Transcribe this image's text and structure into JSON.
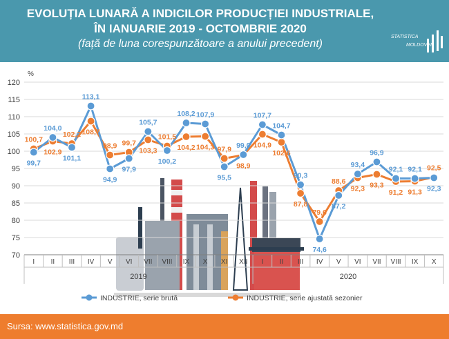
{
  "header": {
    "title_line1": "EVOLUȚIA LUNARĂ A INDICILOR PRODUCȚIEI INDUSTRIALE,",
    "title_line2": "ÎN IANUARIE 2019 - OCTOMBRIE 2020",
    "subtitle": "(față de luna corespunzătoare a anului precedent)",
    "logo_top": "STATISTICA",
    "logo_bottom": "MOLDOVEI"
  },
  "footer": {
    "source": "Sursa: www.statistica.gov.md"
  },
  "colors": {
    "header": "#4a98ad",
    "footer": "#ee7d2e",
    "series_bruta": "#5b9bd5",
    "series_ajustata": "#ed7d31"
  },
  "chart_data": {
    "type": "line",
    "yunit": "%",
    "ylim": [
      70,
      120
    ],
    "yticks": [
      70,
      75,
      80,
      85,
      90,
      95,
      100,
      105,
      110,
      115,
      120
    ],
    "categories": [
      "I",
      "II",
      "III",
      "IV",
      "V",
      "VI",
      "VII",
      "VIII",
      "IX",
      "X",
      "XI",
      "XII",
      "I",
      "II",
      "III",
      "IV",
      "V",
      "VI",
      "VII",
      "VIII",
      "IX",
      "X"
    ],
    "years": [
      {
        "label": "2019",
        "start": 0,
        "end": 11
      },
      {
        "label": "2020",
        "start": 12,
        "end": 21
      }
    ],
    "grid": true,
    "legend_position": "bottom",
    "series": [
      {
        "name": "INDUSTRIE, serie brută",
        "color": "#5b9bd5",
        "values": [
          99.7,
          104.0,
          101.1,
          113.1,
          94.9,
          97.9,
          105.7,
          100.2,
          108.2,
          107.9,
          95.5,
          99.0,
          107.7,
          104.7,
          90.3,
          74.6,
          87.2,
          93.4,
          96.9,
          92.1,
          92.1,
          92.3
        ],
        "labels": [
          "99,7",
          "104,0",
          "101,1",
          "113,1",
          "94,9",
          "97,9",
          "105,7",
          "100,2",
          "108,2",
          "107,9",
          "95,5",
          "99,0",
          "107,7",
          "104,7",
          "90,3",
          "74,6",
          "87,2",
          "93,4",
          "96,9",
          "92,1",
          "92,1",
          "92,3"
        ]
      },
      {
        "name": "INDUSTRIE, serie ajustată sezonier",
        "color": "#ed7d31",
        "values": [
          100.7,
          102.9,
          102.2,
          108.7,
          98.9,
          99.7,
          103.3,
          101.5,
          104.2,
          104.3,
          97.9,
          98.9,
          104.9,
          102.6,
          87.8,
          79.6,
          88.6,
          92.3,
          93.3,
          91.2,
          91.3,
          92.5
        ],
        "labels": [
          "100,7",
          "102,9",
          "102,2",
          "108,7",
          "98,9",
          "99,7",
          "103,3",
          "101,5",
          "104,2",
          "104,3",
          "97,9",
          "98,9",
          "104,9",
          "102,6",
          "87,8",
          "79,6",
          "88,6",
          "92,3",
          "93,3",
          "91,2",
          "91,3",
          "92,5"
        ]
      }
    ]
  }
}
